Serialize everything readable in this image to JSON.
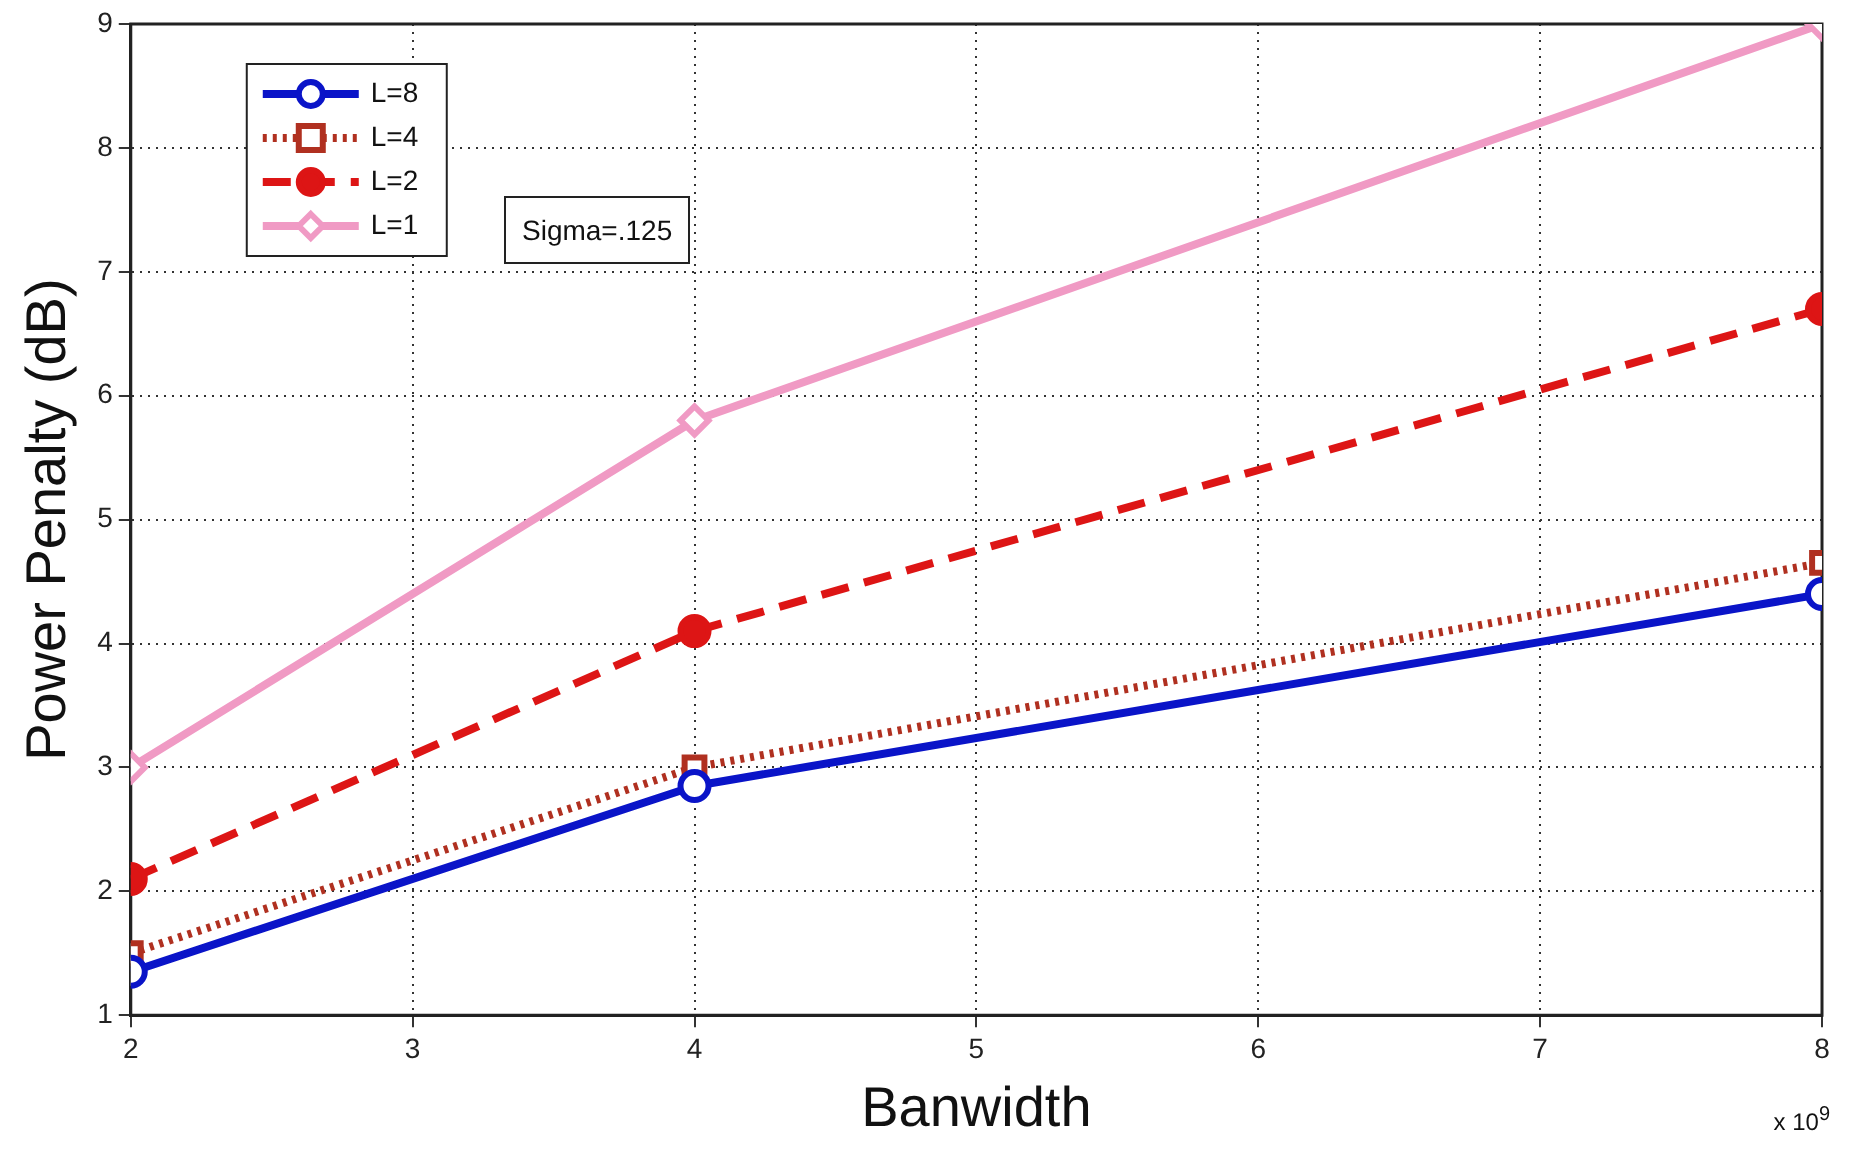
{
  "chart_data": {
    "type": "line",
    "xlabel": "Banwidth",
    "ylabel": "Power Penalty (dB)",
    "x": [
      2,
      4,
      8
    ],
    "xlim": [
      2,
      8
    ],
    "xticks": [
      2,
      3,
      4,
      5,
      6,
      7,
      8
    ],
    "ylim": [
      1,
      9
    ],
    "yticks": [
      1,
      2,
      3,
      4,
      5,
      6,
      7,
      8,
      9
    ],
    "grid": true,
    "legend": "top left",
    "annotations": [
      "Sigma=.125",
      "x 10$^{9}$"
    ],
    "series": [
      {
        "name": "L=8",
        "color": "#0a14c8",
        "values": [
          1.35,
          2.85,
          4.4
        ],
        "marker": "circle",
        "line_style": "solid"
      },
      {
        "name": "L=4",
        "color": "#b03020",
        "values": [
          1.5,
          3.0,
          4.65
        ],
        "marker": "square",
        "line_style": "dotted"
      },
      {
        "name": "L=2",
        "color": "#dd1515",
        "values": [
          2.1,
          4.1,
          6.7
        ],
        "marker": "circle",
        "line_style": "dashed"
      },
      {
        "name": "L=1",
        "color": "#f09ac4",
        "values": [
          3.0,
          5.8,
          9.0
        ],
        "marker": "diamond",
        "line_style": "solid"
      }
    ]
  }
}
